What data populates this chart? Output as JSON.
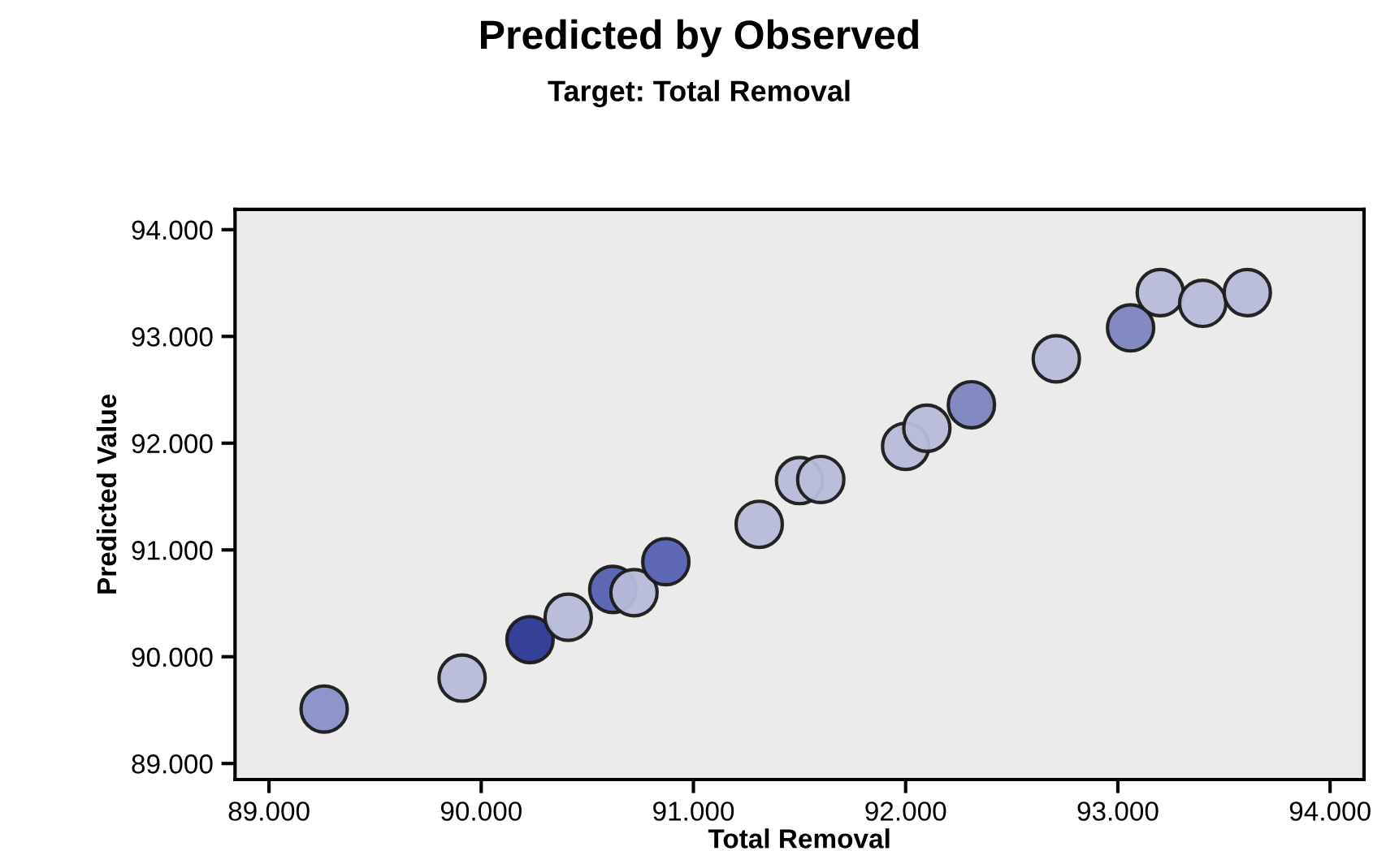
{
  "chart_data": {
    "type": "scatter",
    "title": "Predicted by Observed",
    "subtitle": "Target: Total Removal",
    "xlabel": "Total Removal",
    "ylabel": "Predicted Value",
    "x": [
      89.26,
      89.91,
      90.23,
      90.41,
      90.62,
      90.72,
      90.87,
      91.31,
      91.5,
      91.6,
      92.0,
      92.1,
      92.31,
      92.71,
      93.06,
      93.2,
      93.4,
      93.61
    ],
    "values": [
      89.51,
      89.8,
      90.16,
      90.37,
      90.63,
      90.6,
      90.89,
      91.24,
      91.65,
      91.66,
      91.97,
      92.14,
      92.36,
      92.79,
      93.08,
      93.41,
      93.31,
      93.41
    ],
    "colors": [
      "#8a90c8",
      "#b8bcda",
      "#2b3794",
      "#b8bcda",
      "#5560b0",
      "#b8bcda",
      "#5560b0",
      "#b8bcda",
      "#b8bcda",
      "#b8bcda",
      "#b8bcda",
      "#b8bcda",
      "#7d85c0",
      "#b8bcda",
      "#7d85c0",
      "#b8bcda",
      "#b8bcda",
      "#b8bcda"
    ],
    "xlim": [
      88.84,
      94.16
    ],
    "ylim": [
      88.85,
      94.19
    ],
    "xticks": [
      {
        "value": 89,
        "label": "89.000"
      },
      {
        "value": 90,
        "label": "90.000"
      },
      {
        "value": 91,
        "label": "91.000"
      },
      {
        "value": 92,
        "label": "92.000"
      },
      {
        "value": 93,
        "label": "93.000"
      },
      {
        "value": 94,
        "label": "94.000"
      }
    ],
    "yticks": [
      {
        "value": 89,
        "label": "89.000"
      },
      {
        "value": 90,
        "label": "90.000"
      },
      {
        "value": 91,
        "label": "91.000"
      },
      {
        "value": 92,
        "label": "92.000"
      },
      {
        "value": 93,
        "label": "93.000"
      },
      {
        "value": 94,
        "label": "94.000"
      }
    ],
    "marker": "circle",
    "grid": false,
    "legend": false
  }
}
